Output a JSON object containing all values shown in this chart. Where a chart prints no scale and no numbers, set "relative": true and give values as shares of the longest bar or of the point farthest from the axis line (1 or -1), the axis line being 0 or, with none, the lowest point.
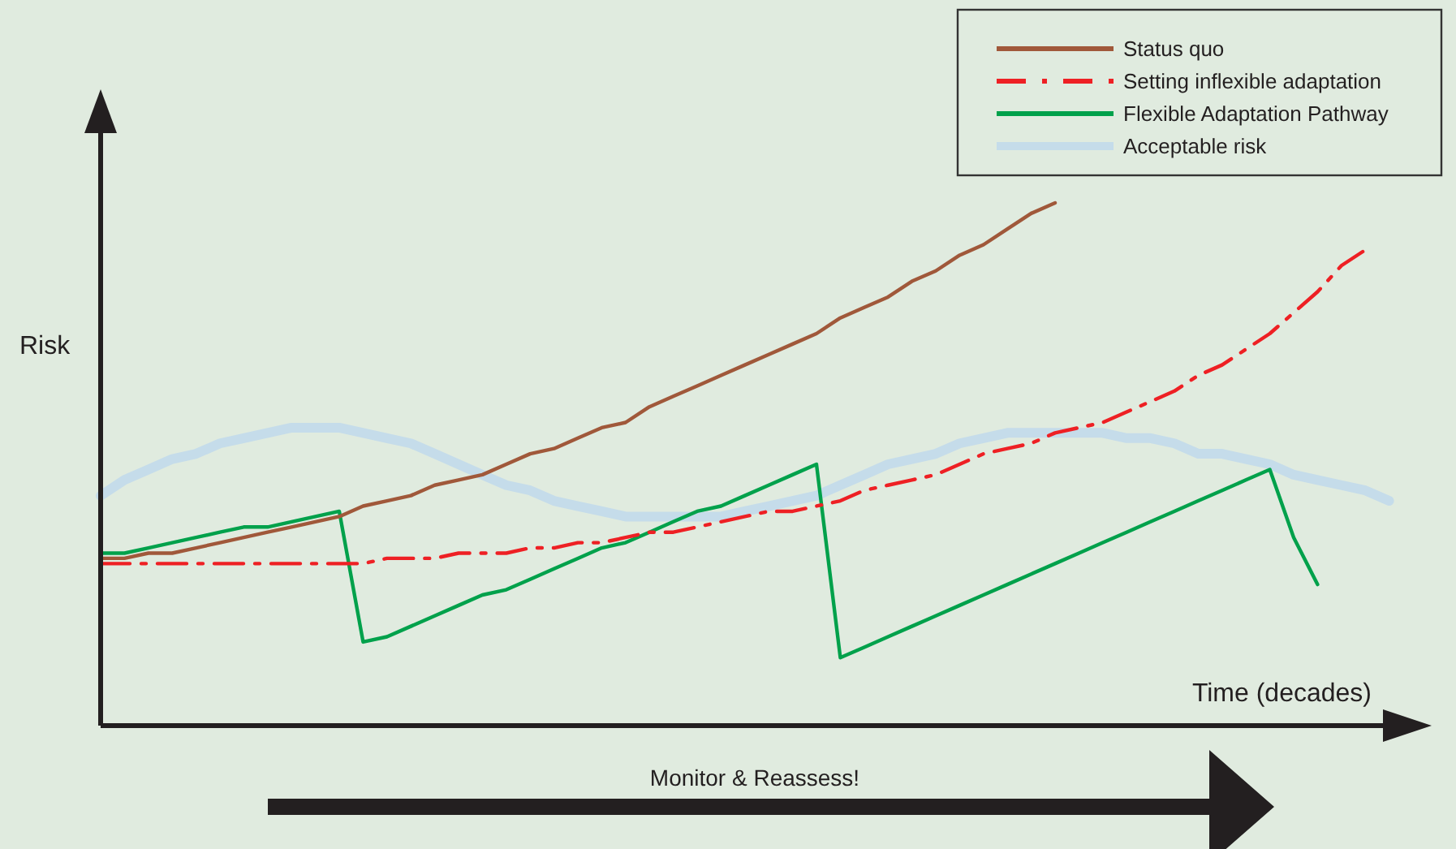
{
  "chart_data": {
    "type": "line",
    "relative": true,
    "ylabel": "Risk",
    "xlabel": "Time (decades)",
    "legend": "top right",
    "annotations": [
      "Monitor & Reassess!"
    ],
    "categories": [
      null,
      null,
      null,
      null,
      null,
      null,
      null,
      null,
      null,
      null,
      null,
      null,
      null,
      null,
      null,
      null,
      null,
      null,
      null,
      null,
      null,
      null,
      null,
      null,
      null,
      null,
      null,
      null,
      null,
      null,
      null,
      null,
      null,
      null,
      null,
      null,
      null,
      null,
      null,
      null,
      null,
      null,
      null,
      null,
      null,
      null,
      null,
      null,
      null,
      null,
      null,
      null,
      null,
      null,
      null,
      null
    ],
    "series": [
      {
        "name": "Status quo",
        "color": "#a0583a",
        "line_style": "solid",
        "values": [
          0.32,
          0.32,
          0.33,
          0.33,
          0.34,
          0.35,
          0.36,
          0.37,
          0.38,
          0.39,
          0.4,
          0.42,
          0.43,
          0.44,
          0.46,
          0.47,
          0.48,
          0.5,
          0.52,
          0.53,
          0.55,
          0.57,
          0.58,
          0.61,
          0.63,
          0.65,
          0.67,
          0.69,
          0.71,
          0.73,
          0.75,
          0.78,
          0.8,
          0.82,
          0.85,
          0.87,
          0.9,
          0.92,
          0.95,
          0.98,
          1,
          null,
          null,
          null,
          null,
          null,
          null,
          null,
          null,
          null,
          null,
          null,
          null,
          null,
          null,
          null
        ]
      },
      {
        "name": "Setting inflexible adaptation",
        "color": "#ee2024",
        "line_style": "dashed",
        "values": [
          0.31,
          0.31,
          0.31,
          0.31,
          0.31,
          0.31,
          0.31,
          0.31,
          0.31,
          0.31,
          0.31,
          0.31,
          0.32,
          0.32,
          0.32,
          0.33,
          0.33,
          0.33,
          0.34,
          0.34,
          0.35,
          0.35,
          0.36,
          0.37,
          0.37,
          0.38,
          0.39,
          0.4,
          0.41,
          0.41,
          0.42,
          0.43,
          0.45,
          0.46,
          0.47,
          0.48,
          0.5,
          0.52,
          0.53,
          0.54,
          0.56,
          0.57,
          0.58,
          0.6,
          0.62,
          0.64,
          0.67,
          0.69,
          0.72,
          0.75,
          0.79,
          0.83,
          0.88,
          0.91,
          null,
          null
        ]
      },
      {
        "name": "Flexible Adaptation Pathway",
        "color": "#00a14b",
        "line_style": "solid",
        "values": [
          0.33,
          0.33,
          0.34,
          0.35,
          0.36,
          0.37,
          0.38,
          0.38,
          0.39,
          0.4,
          0.41,
          0.16,
          0.17,
          0.19,
          0.21,
          0.23,
          0.25,
          0.26,
          0.28,
          0.3,
          0.32,
          0.34,
          0.35,
          0.37,
          0.39,
          0.41,
          0.42,
          0.44,
          0.46,
          0.48,
          0.5,
          0.13,
          0.15,
          0.17,
          0.19,
          0.21,
          0.23,
          0.25,
          0.27,
          0.29,
          0.31,
          0.33,
          0.35,
          0.37,
          0.39,
          0.41,
          0.43,
          0.45,
          0.47,
          0.49,
          0.36,
          0.27,
          null,
          null,
          null,
          null
        ]
      },
      {
        "name": "Acceptable risk",
        "color": "#c5dcea",
        "line_style": "solid",
        "values": [
          0.44,
          0.47,
          0.49,
          0.51,
          0.52,
          0.54,
          0.55,
          0.56,
          0.57,
          0.57,
          0.57,
          0.56,
          0.55,
          0.54,
          0.52,
          0.5,
          0.48,
          0.46,
          0.45,
          0.43,
          0.42,
          0.41,
          0.4,
          0.4,
          0.4,
          0.4,
          0.4,
          0.41,
          0.42,
          0.43,
          0.44,
          0.46,
          0.48,
          0.5,
          0.51,
          0.52,
          0.54,
          0.55,
          0.56,
          0.56,
          0.56,
          0.56,
          0.56,
          0.55,
          0.55,
          0.54,
          0.52,
          0.52,
          0.51,
          0.5,
          0.48,
          0.47,
          0.46,
          0.45,
          0.43,
          null
        ]
      }
    ]
  }
}
